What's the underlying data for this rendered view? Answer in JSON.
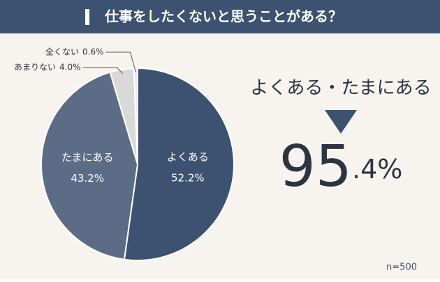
{
  "chart_data": {
    "type": "pie",
    "title": "仕事をしたくないと思うことがある？",
    "categories": [
      "よくある",
      "たまにある",
      "あまりない",
      "全くない"
    ],
    "values": [
      52.2,
      43.2,
      4.0,
      0.6
    ],
    "value_labels": [
      "52.2%",
      "43.2%",
      "4.0%",
      "0.6%"
    ],
    "colors": [
      "#3d5170",
      "#5c6c86",
      "#d9d9d9",
      "#ececec"
    ],
    "annotations": [
      "よくある・たまにある",
      "95",
      ".4%"
    ],
    "note": "n=500"
  }
}
